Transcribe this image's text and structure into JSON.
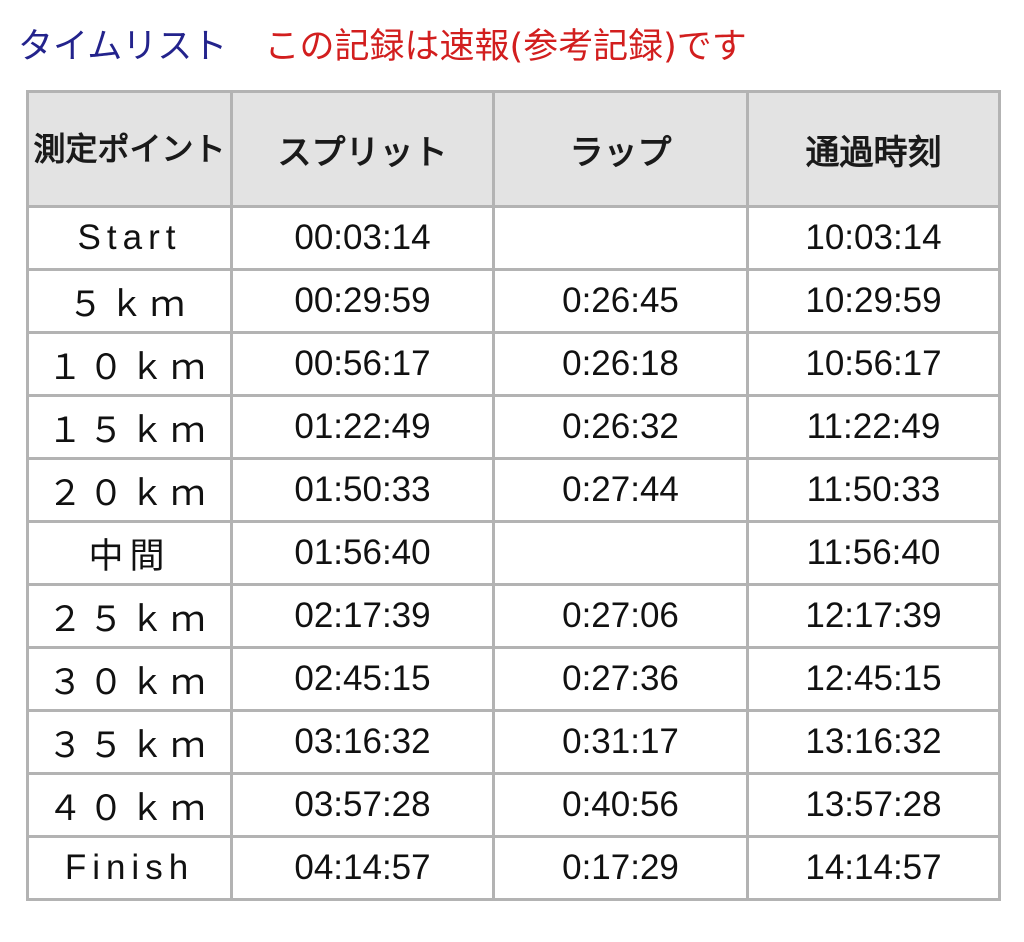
{
  "heading": {
    "title": "タイムリスト",
    "note": "この記録は速報(参考記録)です"
  },
  "table": {
    "headers": [
      "測定ポイント",
      "スプリット",
      "ラップ",
      "通過時刻"
    ],
    "rows": [
      {
        "point": "Start",
        "split": "00:03:14",
        "lap": "",
        "time": "10:03:14"
      },
      {
        "point": "５ｋｍ",
        "split": "00:29:59",
        "lap": "0:26:45",
        "time": "10:29:59"
      },
      {
        "point": "１０ｋｍ",
        "split": "00:56:17",
        "lap": "0:26:18",
        "time": "10:56:17"
      },
      {
        "point": "１５ｋｍ",
        "split": "01:22:49",
        "lap": "0:26:32",
        "time": "11:22:49"
      },
      {
        "point": "２０ｋｍ",
        "split": "01:50:33",
        "lap": "0:27:44",
        "time": "11:50:33"
      },
      {
        "point": "中間",
        "split": "01:56:40",
        "lap": "",
        "time": "11:56:40"
      },
      {
        "point": "２５ｋｍ",
        "split": "02:17:39",
        "lap": "0:27:06",
        "time": "12:17:39"
      },
      {
        "point": "３０ｋｍ",
        "split": "02:45:15",
        "lap": "0:27:36",
        "time": "12:45:15"
      },
      {
        "point": "３５ｋｍ",
        "split": "03:16:32",
        "lap": "0:31:17",
        "time": "13:16:32"
      },
      {
        "point": "４０ｋｍ",
        "split": "03:57:28",
        "lap": "0:40:56",
        "time": "13:57:28"
      },
      {
        "point": "Finish",
        "split": "04:14:57",
        "lap": "0:17:29",
        "time": "14:14:57"
      }
    ]
  }
}
